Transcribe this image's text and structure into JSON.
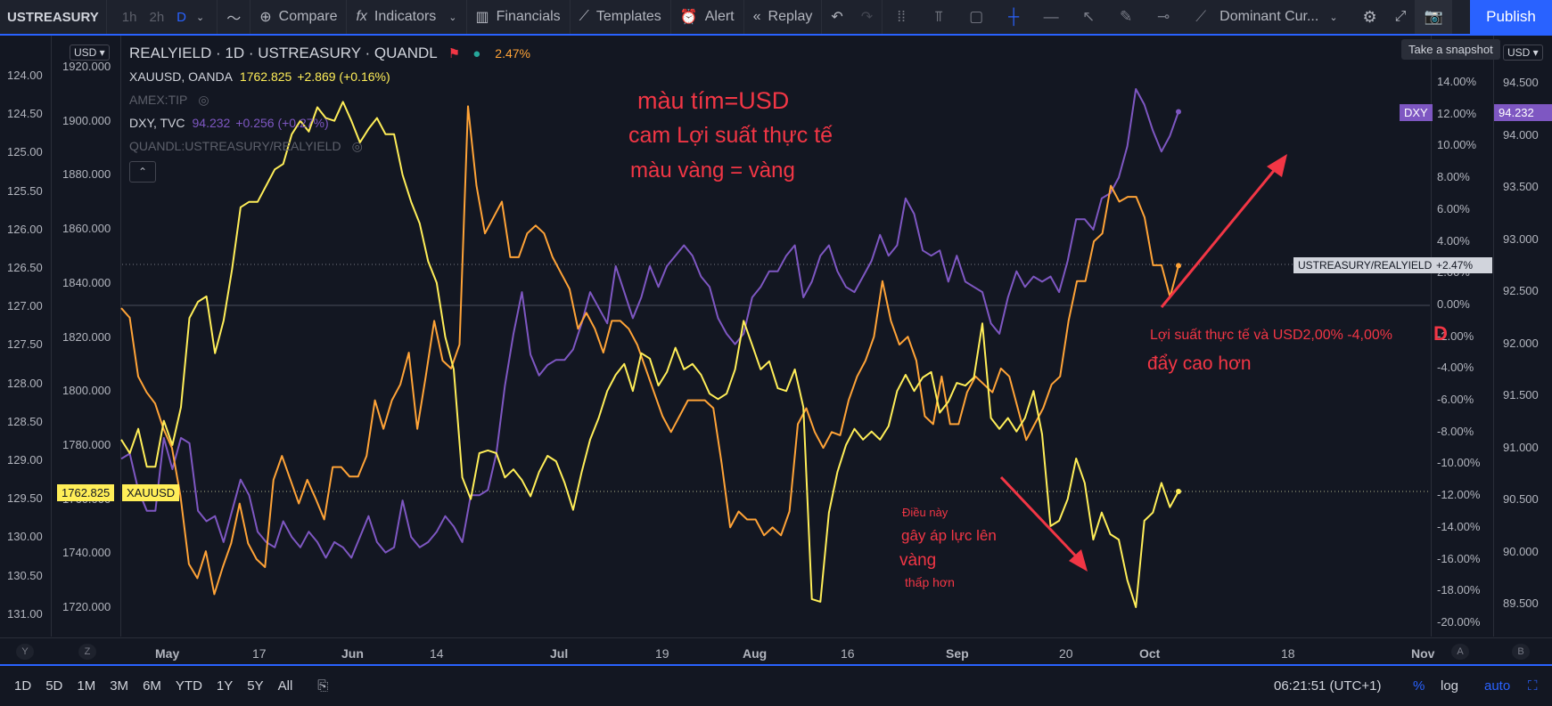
{
  "toolbar": {
    "symbol": "USTREASURY",
    "timeframes": [
      "1h",
      "2h",
      "D"
    ],
    "compare": "Compare",
    "indicators": "Indicators",
    "financials": "Financials",
    "templates": "Templates",
    "alert": "Alert",
    "replay": "Replay",
    "layout": "Dominant Cur...",
    "publish": "Publish",
    "tooltip": "Take a snapshot"
  },
  "legend": {
    "main_title": "REALYIELD · 1D · USTREASURY · QUANDL",
    "main_value": "2.47%",
    "xau_name": "XAUUSD, OANDA",
    "xau_last": "1762.825",
    "xau_change": "+2.869 (+0.16%)",
    "amex": "AMEX:TIP",
    "dxy_name": "DXY, TVC",
    "dxy_last": "94.232",
    "dxy_change": "+0.256 (+0.27%)",
    "quandl": "QUANDL:USTREASURY/REALYIELD"
  },
  "colors": {
    "dxy": "#7e57c2",
    "realyield": "#ffa337",
    "gold": "#ffee58",
    "annotation": "#f23645",
    "accent": "#2962ff"
  },
  "scales": {
    "left_outer": [
      "124.00",
      "124.50",
      "125.00",
      "125.50",
      "126.00",
      "126.50",
      "127.00",
      "127.50",
      "128.00",
      "128.50",
      "129.00",
      "129.50",
      "130.00",
      "130.50",
      "131.00"
    ],
    "left_inner": [
      "1920.000",
      "1900.000",
      "1880.000",
      "1860.000",
      "1840.000",
      "1820.000",
      "1800.000",
      "1780.000",
      "1760.000",
      "1740.000",
      "1720.000"
    ],
    "right_pct": [
      "14.00%",
      "12.00%",
      "10.00%",
      "8.00%",
      "6.00%",
      "4.00%",
      "2.00%",
      "0.00%",
      "-2.00%",
      "-4.00%",
      "-6.00%",
      "-8.00%",
      "-10.00%",
      "-12.00%",
      "-14.00%",
      "-16.00%",
      "-18.00%",
      "-20.00%"
    ],
    "right_dxy": [
      "94.500",
      "94.000",
      "93.500",
      "93.000",
      "92.500",
      "92.000",
      "91.500",
      "91.000",
      "90.500",
      "90.000",
      "89.500"
    ],
    "currency": "USD"
  },
  "price_labels": {
    "xau_price": "1762.825",
    "xau_tag": "XAUUSD",
    "dxy_tag": "DXY",
    "dxy_price": "94.232",
    "ry_tag": "USTREASURY/REALYIELD",
    "ry_value": "+2.47%"
  },
  "annotations": {
    "a1": "màu tím=USD",
    "a2": "cam Lợi suất thực tế",
    "a3": "màu vàng = vàng",
    "a4": "Lợi suất thực tế và USD2,00% -4,00%",
    "a5": "đẩy cao hơn",
    "a6": "Điều này",
    "a7": "gây áp lực lên",
    "a8": "vàng",
    "a9": "thấp hơn",
    "a10": "D"
  },
  "time_axis": [
    "May",
    "17",
    "Jun",
    "14",
    "Jul",
    "19",
    "Aug",
    "16",
    "Sep",
    "20",
    "Oct",
    "18",
    "Nov"
  ],
  "bottom": {
    "ranges": [
      "1D",
      "5D",
      "1M",
      "3M",
      "6M",
      "YTD",
      "1Y",
      "5Y",
      "All"
    ],
    "clock": "06:21:51 (UTC+1)",
    "pct": "%",
    "log": "log",
    "auto": "auto"
  },
  "chart_data": {
    "type": "line",
    "title": "REALYIELD · 1D · USTREASURY · QUANDL",
    "series": [
      {
        "name": "DXY, TVC",
        "scale": "right_dxy",
        "values": [
          90.9,
          90.95,
          90.6,
          90.4,
          90.4,
          91.1,
          90.8,
          91.1,
          91.05,
          90.4,
          90.3,
          90.35,
          90.1,
          90.4,
          90.7,
          90.55,
          90.2,
          90.1,
          90.05,
          90.3,
          90.15,
          90.05,
          90.2,
          90.1,
          89.95,
          90.1,
          90.05,
          89.95,
          90.15,
          90.35,
          90.1,
          90.0,
          90.05,
          90.5,
          90.15,
          90.05,
          90.1,
          90.2,
          90.35,
          90.25,
          90.1,
          90.55,
          90.55,
          90.6,
          90.95,
          91.6,
          92.1,
          92.5,
          91.9,
          91.7,
          91.8,
          91.85,
          91.85,
          91.95,
          92.2,
          92.5,
          92.35,
          92.2,
          92.75,
          92.5,
          92.25,
          92.45,
          92.75,
          92.55,
          92.75,
          92.85,
          92.95,
          92.85,
          92.65,
          92.55,
          92.25,
          92.1,
          92.0,
          92.1,
          92.45,
          92.55,
          92.7,
          92.7,
          92.85,
          92.95,
          92.45,
          92.6,
          92.85,
          92.95,
          92.7,
          92.55,
          92.5,
          92.65,
          92.8,
          93.05,
          92.85,
          92.95,
          93.4,
          93.25,
          92.9,
          92.85,
          92.9,
          92.6,
          92.85,
          92.6,
          92.55,
          92.5,
          92.2,
          92.1,
          92.45,
          92.7,
          92.55,
          92.65,
          92.6,
          92.65,
          92.5,
          92.8,
          93.2,
          93.2,
          93.1,
          93.4,
          93.45,
          93.6,
          93.9,
          94.45,
          94.3,
          94.05,
          93.85,
          94.0,
          94.232
        ]
      },
      {
        "name": "USTREASURY/REALYIELD",
        "scale": "right_pct",
        "values": [
          -0.2,
          -0.8,
          -4.5,
          -5.5,
          -6.2,
          -7.8,
          -9.0,
          -12.0,
          -16.3,
          -17.2,
          -15.5,
          -18.2,
          -16.5,
          -15.0,
          -12.5,
          -15.0,
          -16.0,
          -16.5,
          -11.0,
          -9.5,
          -11.0,
          -12.5,
          -11.0,
          -12.2,
          -13.5,
          -10.2,
          -10.2,
          -10.8,
          -10.8,
          -9.5,
          -6.0,
          -7.8,
          -6.0,
          -5.0,
          -3.0,
          -7.8,
          -4.5,
          -1.0,
          -3.5,
          -4.0,
          -2.5,
          12.5,
          7.5,
          4.5,
          5.5,
          6.5,
          3.0,
          3.0,
          4.5,
          5.0,
          4.5,
          3.0,
          2.0,
          1.0,
          -1.5,
          -0.5,
          -1.5,
          -3.0,
          -1.0,
          -1.0,
          -1.5,
          -2.5,
          -4.0,
          -5.5,
          -7.0,
          -8.0,
          -7.0,
          -6.0,
          -6.0,
          -6.0,
          -6.5,
          -10.0,
          -14.0,
          -13.0,
          -13.5,
          -13.5,
          -14.5,
          -14.0,
          -14.5,
          -13.0,
          -7.5,
          -6.5,
          -8.0,
          -9.0,
          -8.0,
          -8.2,
          -6.0,
          -4.5,
          -3.5,
          -2.0,
          1.5,
          -1.0,
          -2.5,
          -2.0,
          -3.5,
          -7.0,
          -7.5,
          -4.5,
          -7.5,
          -7.5,
          -5.5,
          -4.5,
          -5.0,
          -5.5,
          -4.0,
          -4.5,
          -6.5,
          -8.5,
          -7.5,
          -6.5,
          -5.0,
          -4.5,
          -1.0,
          1.5,
          1.5,
          4.0,
          4.5,
          7.5,
          6.5,
          6.8,
          6.8,
          5.5,
          2.5,
          2.5,
          0.5,
          2.47
        ]
      },
      {
        "name": "XAUUSD, OANDA",
        "scale": "left_inner",
        "values": [
          1782.0,
          1777.0,
          1786.0,
          1772.0,
          1772.0,
          1789.0,
          1780.0,
          1794.0,
          1827.0,
          1833.0,
          1835.0,
          1814.0,
          1826.0,
          1845.0,
          1868.0,
          1870.0,
          1870.0,
          1876.0,
          1882.0,
          1884.0,
          1895.0,
          1900.0,
          1896.0,
          1905.0,
          1901.0,
          1900.0,
          1907.0,
          1900.0,
          1892.0,
          1897.0,
          1901.0,
          1895.0,
          1895.0,
          1880.0,
          1870.0,
          1862.0,
          1848.0,
          1840.0,
          1820.0,
          1808.0,
          1768.0,
          1760.0,
          1777.0,
          1778.0,
          1777.0,
          1768.0,
          1771.0,
          1767.0,
          1761.0,
          1770.0,
          1776.0,
          1774.0,
          1766.0,
          1756.0,
          1770.0,
          1782.0,
          1790.0,
          1800.0,
          1806.0,
          1810.0,
          1800.0,
          1814.0,
          1812.0,
          1802.0,
          1807.0,
          1816.0,
          1808.0,
          1810.0,
          1806.0,
          1799.0,
          1797.0,
          1799.0,
          1808.0,
          1826.0,
          1817.0,
          1808.0,
          1811.0,
          1801.0,
          1800.0,
          1808.0,
          1794.0,
          1723.0,
          1722.0,
          1755.0,
          1770.0,
          1780.0,
          1786.0,
          1782.0,
          1785.0,
          1782.0,
          1787.0,
          1800.0,
          1806.0,
          1800.0,
          1805.0,
          1807.0,
          1792.0,
          1796.0,
          1803.0,
          1802.0,
          1805.0,
          1825.0,
          1790.0,
          1786.0,
          1790.0,
          1785.0,
          1790.0,
          1800.0,
          1784.0,
          1750.0,
          1752.0,
          1760.0,
          1775.0,
          1766.0,
          1745.0,
          1755.0,
          1747.0,
          1745.0,
          1730.0,
          1720.0,
          1752.0,
          1755.0,
          1766.0,
          1757.0,
          1762.825
        ]
      }
    ],
    "x_axis_ticks": [
      "May",
      "17",
      "Jun",
      "14",
      "Jul",
      "19",
      "Aug",
      "16",
      "Sep",
      "20",
      "Oct",
      "18",
      "Nov"
    ],
    "grid": false,
    "legend_position": "top-left"
  }
}
